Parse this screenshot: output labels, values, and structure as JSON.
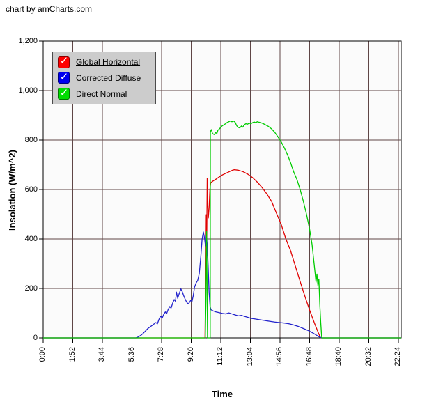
{
  "credit": "chart by amCharts.com",
  "icons": {
    "check_glyph": "✓"
  },
  "colors": {
    "grid": "#5f4646",
    "plot_bg": "#fbfbfb",
    "plot_border": "#000000",
    "tick": "#000000",
    "legend_bg": "#cccccc",
    "legend_border": "#4a4a4a"
  },
  "legend": {
    "items": [
      {
        "label": "Global Horizontal",
        "color": "#ff0000",
        "checked": true
      },
      {
        "label": "Corrected Diffuse",
        "color": "#0000ee",
        "checked": true
      },
      {
        "label": "Direct Normal",
        "color": "#00dd00",
        "checked": true
      }
    ]
  },
  "chart_data": {
    "type": "line",
    "title": "",
    "xlabel": "Time",
    "ylabel": "Insolation (W/m^2)",
    "grid": true,
    "legend_position": "top-left-inside",
    "xlim": [
      0,
      22.571
    ],
    "ylim": [
      0,
      1200
    ],
    "y_ticks": [
      {
        "label": "1,200",
        "value": 1200
      },
      {
        "label": "1,000",
        "value": 1000
      },
      {
        "label": "800",
        "value": 800
      },
      {
        "label": "600",
        "value": 600
      },
      {
        "label": "400",
        "value": 400
      },
      {
        "label": "200",
        "value": 200
      },
      {
        "label": "0",
        "value": 0
      }
    ],
    "x_ticks": [
      {
        "label": "0:00",
        "hour": 0
      },
      {
        "label": "1:52",
        "hour": 1.8667
      },
      {
        "label": "3:44",
        "hour": 3.7333
      },
      {
        "label": "5:36",
        "hour": 5.6
      },
      {
        "label": "7:28",
        "hour": 7.4667
      },
      {
        "label": "9:20",
        "hour": 9.3333
      },
      {
        "label": "11:12",
        "hour": 11.2
      },
      {
        "label": "13:04",
        "hour": 13.0667
      },
      {
        "label": "14:56",
        "hour": 14.9333
      },
      {
        "label": "16:48",
        "hour": 16.8
      },
      {
        "label": "18:40",
        "hour": 18.6667
      },
      {
        "label": "20:32",
        "hour": 20.5333
      },
      {
        "label": "22:24",
        "hour": 22.4
      }
    ],
    "series": [
      {
        "name": "Global Horizontal",
        "color": "#e00000",
        "points": [
          [
            0,
            0
          ],
          [
            10.2,
            0
          ],
          [
            10.23,
            160
          ],
          [
            10.26,
            300
          ],
          [
            10.28,
            498
          ],
          [
            10.31,
            385
          ],
          [
            10.34,
            645
          ],
          [
            10.37,
            555
          ],
          [
            10.41,
            485
          ],
          [
            10.46,
            525
          ],
          [
            10.51,
            600
          ],
          [
            10.56,
            627
          ],
          [
            10.7,
            634
          ],
          [
            10.9,
            642
          ],
          [
            11.1,
            651
          ],
          [
            11.3,
            659
          ],
          [
            11.5,
            665
          ],
          [
            11.7,
            671
          ],
          [
            11.9,
            677
          ],
          [
            12.05,
            680
          ],
          [
            12.3,
            678
          ],
          [
            12.6,
            672
          ],
          [
            12.9,
            662
          ],
          [
            13.2,
            648
          ],
          [
            13.5,
            630
          ],
          [
            13.8,
            608
          ],
          [
            14.1,
            582
          ],
          [
            14.4,
            552
          ],
          [
            14.7,
            505
          ],
          [
            15.0,
            460
          ],
          [
            15.3,
            400
          ],
          [
            15.6,
            352
          ],
          [
            15.9,
            290
          ],
          [
            16.2,
            228
          ],
          [
            16.5,
            168
          ],
          [
            16.8,
            112
          ],
          [
            17.1,
            60
          ],
          [
            17.3,
            28
          ],
          [
            17.45,
            5
          ],
          [
            17.5,
            0
          ],
          [
            22.571,
            0
          ]
        ]
      },
      {
        "name": "Corrected Diffuse",
        "color": "#2222cc",
        "points": [
          [
            0,
            0
          ],
          [
            5.85,
            0
          ],
          [
            6.0,
            4
          ],
          [
            6.15,
            10
          ],
          [
            6.3,
            18
          ],
          [
            6.45,
            28
          ],
          [
            6.6,
            38
          ],
          [
            6.75,
            45
          ],
          [
            6.9,
            52
          ],
          [
            7.1,
            62
          ],
          [
            7.2,
            57
          ],
          [
            7.3,
            75
          ],
          [
            7.4,
            88
          ],
          [
            7.5,
            80
          ],
          [
            7.6,
            95
          ],
          [
            7.7,
            105
          ],
          [
            7.78,
            98
          ],
          [
            7.88,
            115
          ],
          [
            7.98,
            127
          ],
          [
            8.06,
            120
          ],
          [
            8.16,
            140
          ],
          [
            8.26,
            155
          ],
          [
            8.34,
            148
          ],
          [
            8.4,
            185
          ],
          [
            8.48,
            160
          ],
          [
            8.58,
            180
          ],
          [
            8.68,
            198
          ],
          [
            8.76,
            188
          ],
          [
            8.86,
            170
          ],
          [
            8.94,
            158
          ],
          [
            9.04,
            145
          ],
          [
            9.14,
            137
          ],
          [
            9.22,
            143
          ],
          [
            9.3,
            152
          ],
          [
            9.38,
            147
          ],
          [
            9.46,
            170
          ],
          [
            9.54,
            205
          ],
          [
            9.64,
            222
          ],
          [
            9.74,
            232
          ],
          [
            9.84,
            260
          ],
          [
            9.94,
            330
          ],
          [
            10.02,
            400
          ],
          [
            10.1,
            428
          ],
          [
            10.17,
            404
          ],
          [
            10.23,
            372
          ],
          [
            10.29,
            415
          ],
          [
            10.34,
            378
          ],
          [
            10.4,
            292
          ],
          [
            10.46,
            185
          ],
          [
            10.52,
            128
          ],
          [
            10.58,
            114
          ],
          [
            10.72,
            109
          ],
          [
            10.9,
            105
          ],
          [
            11.1,
            102
          ],
          [
            11.3,
            99
          ],
          [
            11.5,
            97
          ],
          [
            11.7,
            101
          ],
          [
            11.9,
            97
          ],
          [
            12.1,
            93
          ],
          [
            12.3,
            89
          ],
          [
            12.5,
            91
          ],
          [
            12.7,
            87
          ],
          [
            12.9,
            83
          ],
          [
            13.1,
            79
          ],
          [
            13.3,
            77
          ],
          [
            13.5,
            75
          ],
          [
            13.7,
            73
          ],
          [
            14.0,
            70
          ],
          [
            14.3,
            67
          ],
          [
            14.6,
            64
          ],
          [
            14.9,
            62
          ],
          [
            15.2,
            60
          ],
          [
            15.5,
            57
          ],
          [
            15.8,
            52
          ],
          [
            16.1,
            46
          ],
          [
            16.4,
            38
          ],
          [
            16.7,
            30
          ],
          [
            17.0,
            20
          ],
          [
            17.2,
            12
          ],
          [
            17.4,
            4
          ],
          [
            17.55,
            0
          ],
          [
            22.571,
            0
          ]
        ]
      },
      {
        "name": "Direct Normal",
        "color": "#00cc00",
        "points": [
          [
            0,
            0
          ],
          [
            9.9,
            0
          ],
          [
            10.22,
            0
          ],
          [
            10.26,
            150
          ],
          [
            10.3,
            430
          ],
          [
            10.33,
            240
          ],
          [
            10.36,
            0
          ],
          [
            10.53,
            0
          ],
          [
            10.54,
            833
          ],
          [
            10.6,
            842
          ],
          [
            10.68,
            826
          ],
          [
            10.78,
            822
          ],
          [
            10.88,
            830
          ],
          [
            10.95,
            826
          ],
          [
            11.02,
            840
          ],
          [
            11.1,
            844
          ],
          [
            11.2,
            852
          ],
          [
            11.3,
            858
          ],
          [
            11.4,
            862
          ],
          [
            11.5,
            866
          ],
          [
            11.6,
            871
          ],
          [
            11.7,
            874
          ],
          [
            11.8,
            877
          ],
          [
            11.9,
            874
          ],
          [
            12.0,
            877
          ],
          [
            12.1,
            872
          ],
          [
            12.2,
            858
          ],
          [
            12.3,
            851
          ],
          [
            12.4,
            849
          ],
          [
            12.5,
            857
          ],
          [
            12.58,
            852
          ],
          [
            12.68,
            862
          ],
          [
            12.78,
            866
          ],
          [
            12.88,
            864
          ],
          [
            12.98,
            868
          ],
          [
            13.1,
            866
          ],
          [
            13.2,
            870
          ],
          [
            13.3,
            873
          ],
          [
            13.4,
            870
          ],
          [
            13.5,
            874
          ],
          [
            13.6,
            872
          ],
          [
            13.72,
            870
          ],
          [
            13.85,
            867
          ],
          [
            14.0,
            862
          ],
          [
            14.2,
            855
          ],
          [
            14.4,
            845
          ],
          [
            14.6,
            831
          ],
          [
            14.8,
            813
          ],
          [
            15.0,
            793
          ],
          [
            15.2,
            769
          ],
          [
            15.4,
            741
          ],
          [
            15.6,
            708
          ],
          [
            15.8,
            670
          ],
          [
            16.0,
            640
          ],
          [
            16.2,
            600
          ],
          [
            16.4,
            553
          ],
          [
            16.6,
            500
          ],
          [
            16.8,
            438
          ],
          [
            16.95,
            378
          ],
          [
            17.05,
            318
          ],
          [
            17.15,
            258
          ],
          [
            17.2,
            225
          ],
          [
            17.26,
            258
          ],
          [
            17.32,
            212
          ],
          [
            17.38,
            238
          ],
          [
            17.44,
            135
          ],
          [
            17.5,
            60
          ],
          [
            17.56,
            0
          ],
          [
            22.571,
            0
          ]
        ]
      }
    ]
  }
}
